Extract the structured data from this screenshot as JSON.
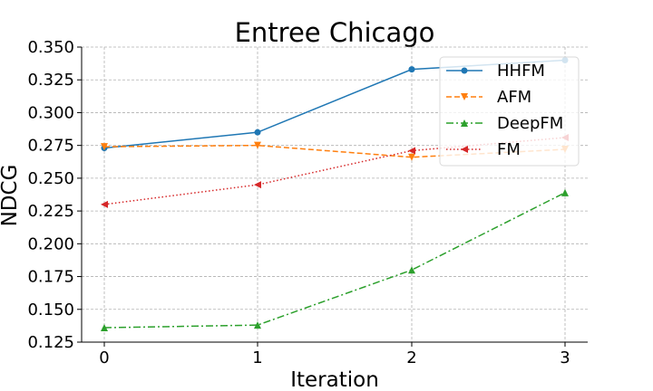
{
  "chart_data": {
    "type": "line",
    "title": "Entree Chicago",
    "xlabel": "Iteration",
    "ylabel": "NDCG",
    "x": [
      0,
      1,
      2,
      3
    ],
    "xticks": [
      "0",
      "1",
      "2",
      "3"
    ],
    "ylim": [
      0.125,
      0.35
    ],
    "yticks": [
      "0.125",
      "0.150",
      "0.175",
      "0.200",
      "0.225",
      "0.250",
      "0.275",
      "0.300",
      "0.325",
      "0.350"
    ],
    "grid": true,
    "legend_position": "top-right",
    "series": [
      {
        "name": "HHFM",
        "values": [
          0.273,
          0.285,
          0.333,
          0.34
        ],
        "color": "#1f77b4",
        "linestyle": "solid",
        "marker": "circle"
      },
      {
        "name": "AFM",
        "values": [
          0.274,
          0.275,
          0.266,
          0.272
        ],
        "color": "#ff7f0e",
        "linestyle": "dashed",
        "marker": "triangle-down"
      },
      {
        "name": "DeepFM",
        "values": [
          0.136,
          0.138,
          0.18,
          0.239
        ],
        "color": "#2ca02c",
        "linestyle": "dashdot",
        "marker": "triangle-up"
      },
      {
        "name": "FM",
        "values": [
          0.23,
          0.245,
          0.271,
          0.281
        ],
        "color": "#d62728",
        "linestyle": "dotted",
        "marker": "triangle-left"
      }
    ]
  }
}
